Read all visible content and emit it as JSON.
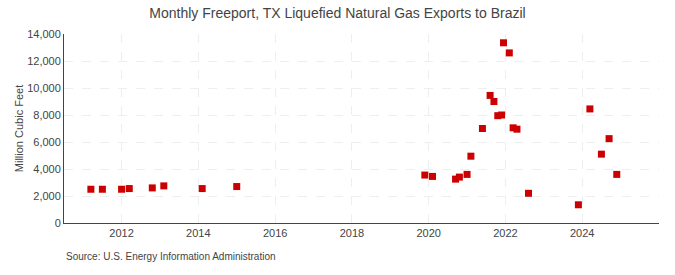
{
  "chart_data": {
    "type": "scatter",
    "title": "Monthly Freeport, TX Liquefied Natural Gas Exports to Brazil",
    "ylabel": "Million Cubic Feet",
    "annotations": [
      "Source: U.S. Energy Information Administration"
    ],
    "x": [
      2011.2,
      2011.5,
      2012.0,
      2012.2,
      2012.8,
      2013.1,
      2014.1,
      2015.0,
      2019.9,
      2020.1,
      2020.7,
      2020.8,
      2021.0,
      2021.1,
      2021.4,
      2021.6,
      2021.7,
      2021.8,
      2021.9,
      2021.95,
      2022.1,
      2022.2,
      2022.3,
      2022.6,
      2023.9,
      2024.2,
      2024.5,
      2024.7,
      2024.9
    ],
    "values": [
      2500,
      2500,
      2500,
      2550,
      2600,
      2750,
      2550,
      2700,
      3550,
      3450,
      3250,
      3400,
      3600,
      4950,
      7000,
      9450,
      9000,
      7950,
      8000,
      13350,
      12600,
      7050,
      6950,
      2200,
      1350,
      8450,
      5100,
      6250,
      3600
    ],
    "color": "#cc0000",
    "marker": "square",
    "xlim": [
      2010.5,
      2026.0
    ],
    "xticks": [
      2012,
      2014,
      2016,
      2018,
      2020,
      2022,
      2024
    ],
    "ylim": [
      0,
      14000
    ],
    "yticks": [
      0,
      {
        "value": 2000,
        "label": "2,000"
      },
      {
        "value": 4000,
        "label": "4,000"
      },
      {
        "value": 6000,
        "label": "6,000"
      },
      {
        "value": 8000,
        "label": "8,000"
      },
      {
        "value": 10000,
        "label": "10,000"
      },
      {
        "value": 12000,
        "label": "12,000"
      },
      {
        "value": 14000,
        "label": "14,000"
      }
    ],
    "grid": true
  }
}
